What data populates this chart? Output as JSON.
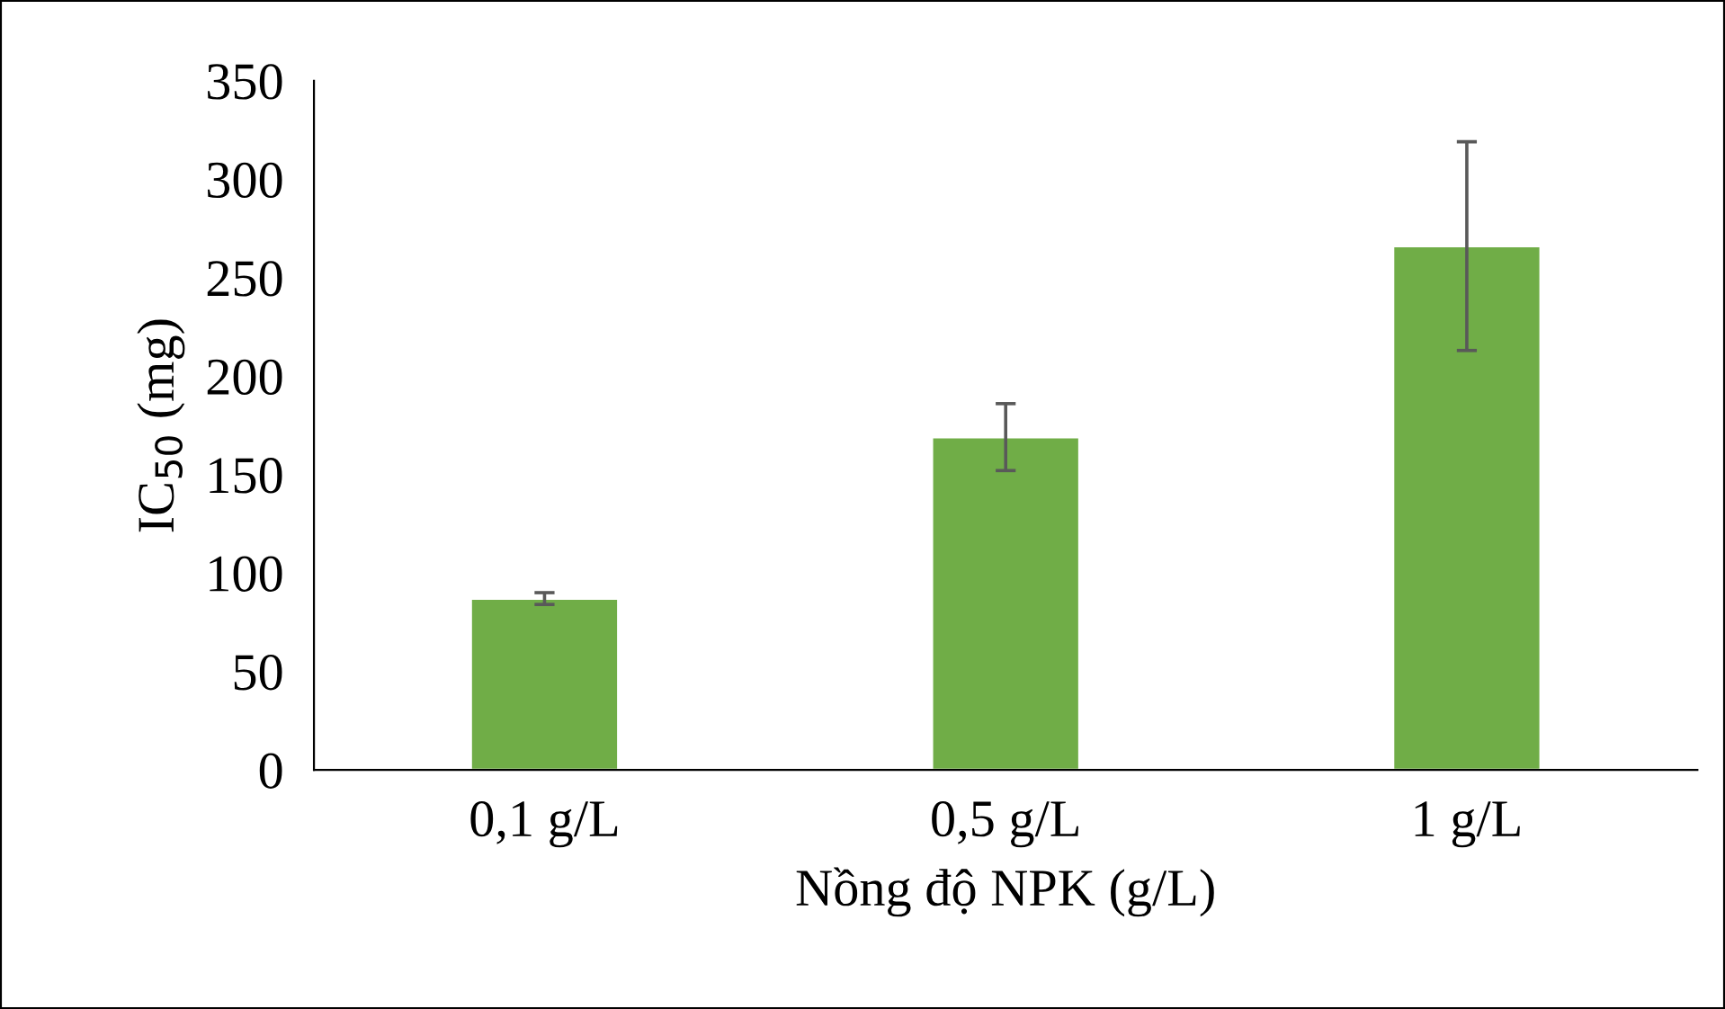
{
  "chart_data": {
    "type": "bar",
    "xlabel": "Nồng độ NPK (g/L)",
    "ylabel": "IC$_{50}$ (mg)",
    "categories": [
      "0,1 g/L",
      "0,5 g/L",
      "1 g/L"
    ],
    "values": [
      87,
      169,
      266
    ],
    "color": "#70ad47",
    "errors": [
      3,
      17,
      53
    ],
    "ylim": [
      0,
      350
    ],
    "yticks": [
      0,
      50,
      100,
      150,
      200,
      250,
      300,
      350
    ],
    "grid": false
  }
}
